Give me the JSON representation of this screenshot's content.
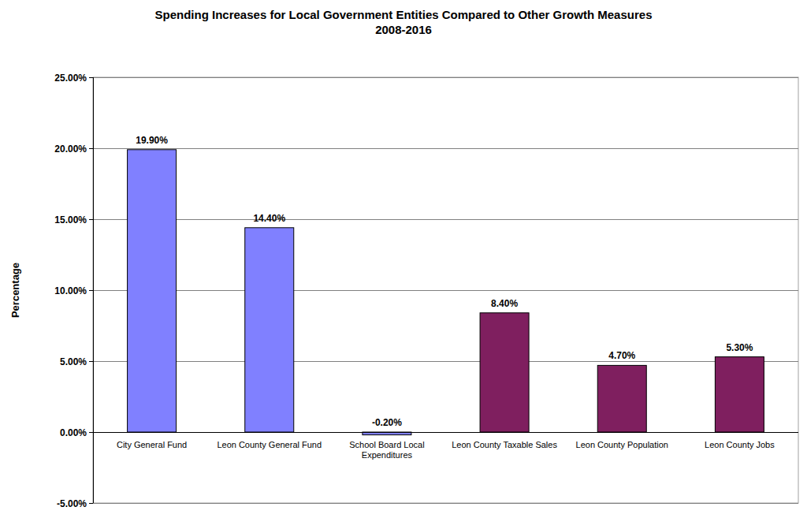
{
  "chart_data": {
    "type": "bar",
    "title": "Spending Increases for Local Government Entities Compared to Other Growth Measures",
    "subtitle": "2008-2016",
    "y_label": "Percentage",
    "categories": [
      "City General Fund",
      "Leon County General Fund",
      "School Board Local Expenditures",
      "Leon County Taxable Sales",
      "Leon County Population",
      "Leon County Jobs"
    ],
    "values": [
      19.9,
      14.4,
      -0.2,
      8.4,
      4.7,
      5.3
    ],
    "value_labels": [
      "19.90%",
      "14.40%",
      "-0.20%",
      "8.40%",
      "4.70%",
      "5.30%"
    ],
    "colors": [
      "#8080ff",
      "#8080ff",
      "#8080ff",
      "#7f1f5f",
      "#7f1f5f",
      "#7f1f5f"
    ],
    "ylim": [
      -5,
      25
    ],
    "yticks": [
      {
        "value": -5,
        "label": "-5.00%"
      },
      {
        "value": 0,
        "label": "0.00%"
      },
      {
        "value": 5,
        "label": "5.00%"
      },
      {
        "value": 10,
        "label": "10.00%"
      },
      {
        "value": 15,
        "label": "15.00%"
      },
      {
        "value": 20,
        "label": "20.00%"
      },
      {
        "value": 25,
        "label": "25.00%"
      }
    ],
    "grid": true,
    "data_labels": true
  }
}
